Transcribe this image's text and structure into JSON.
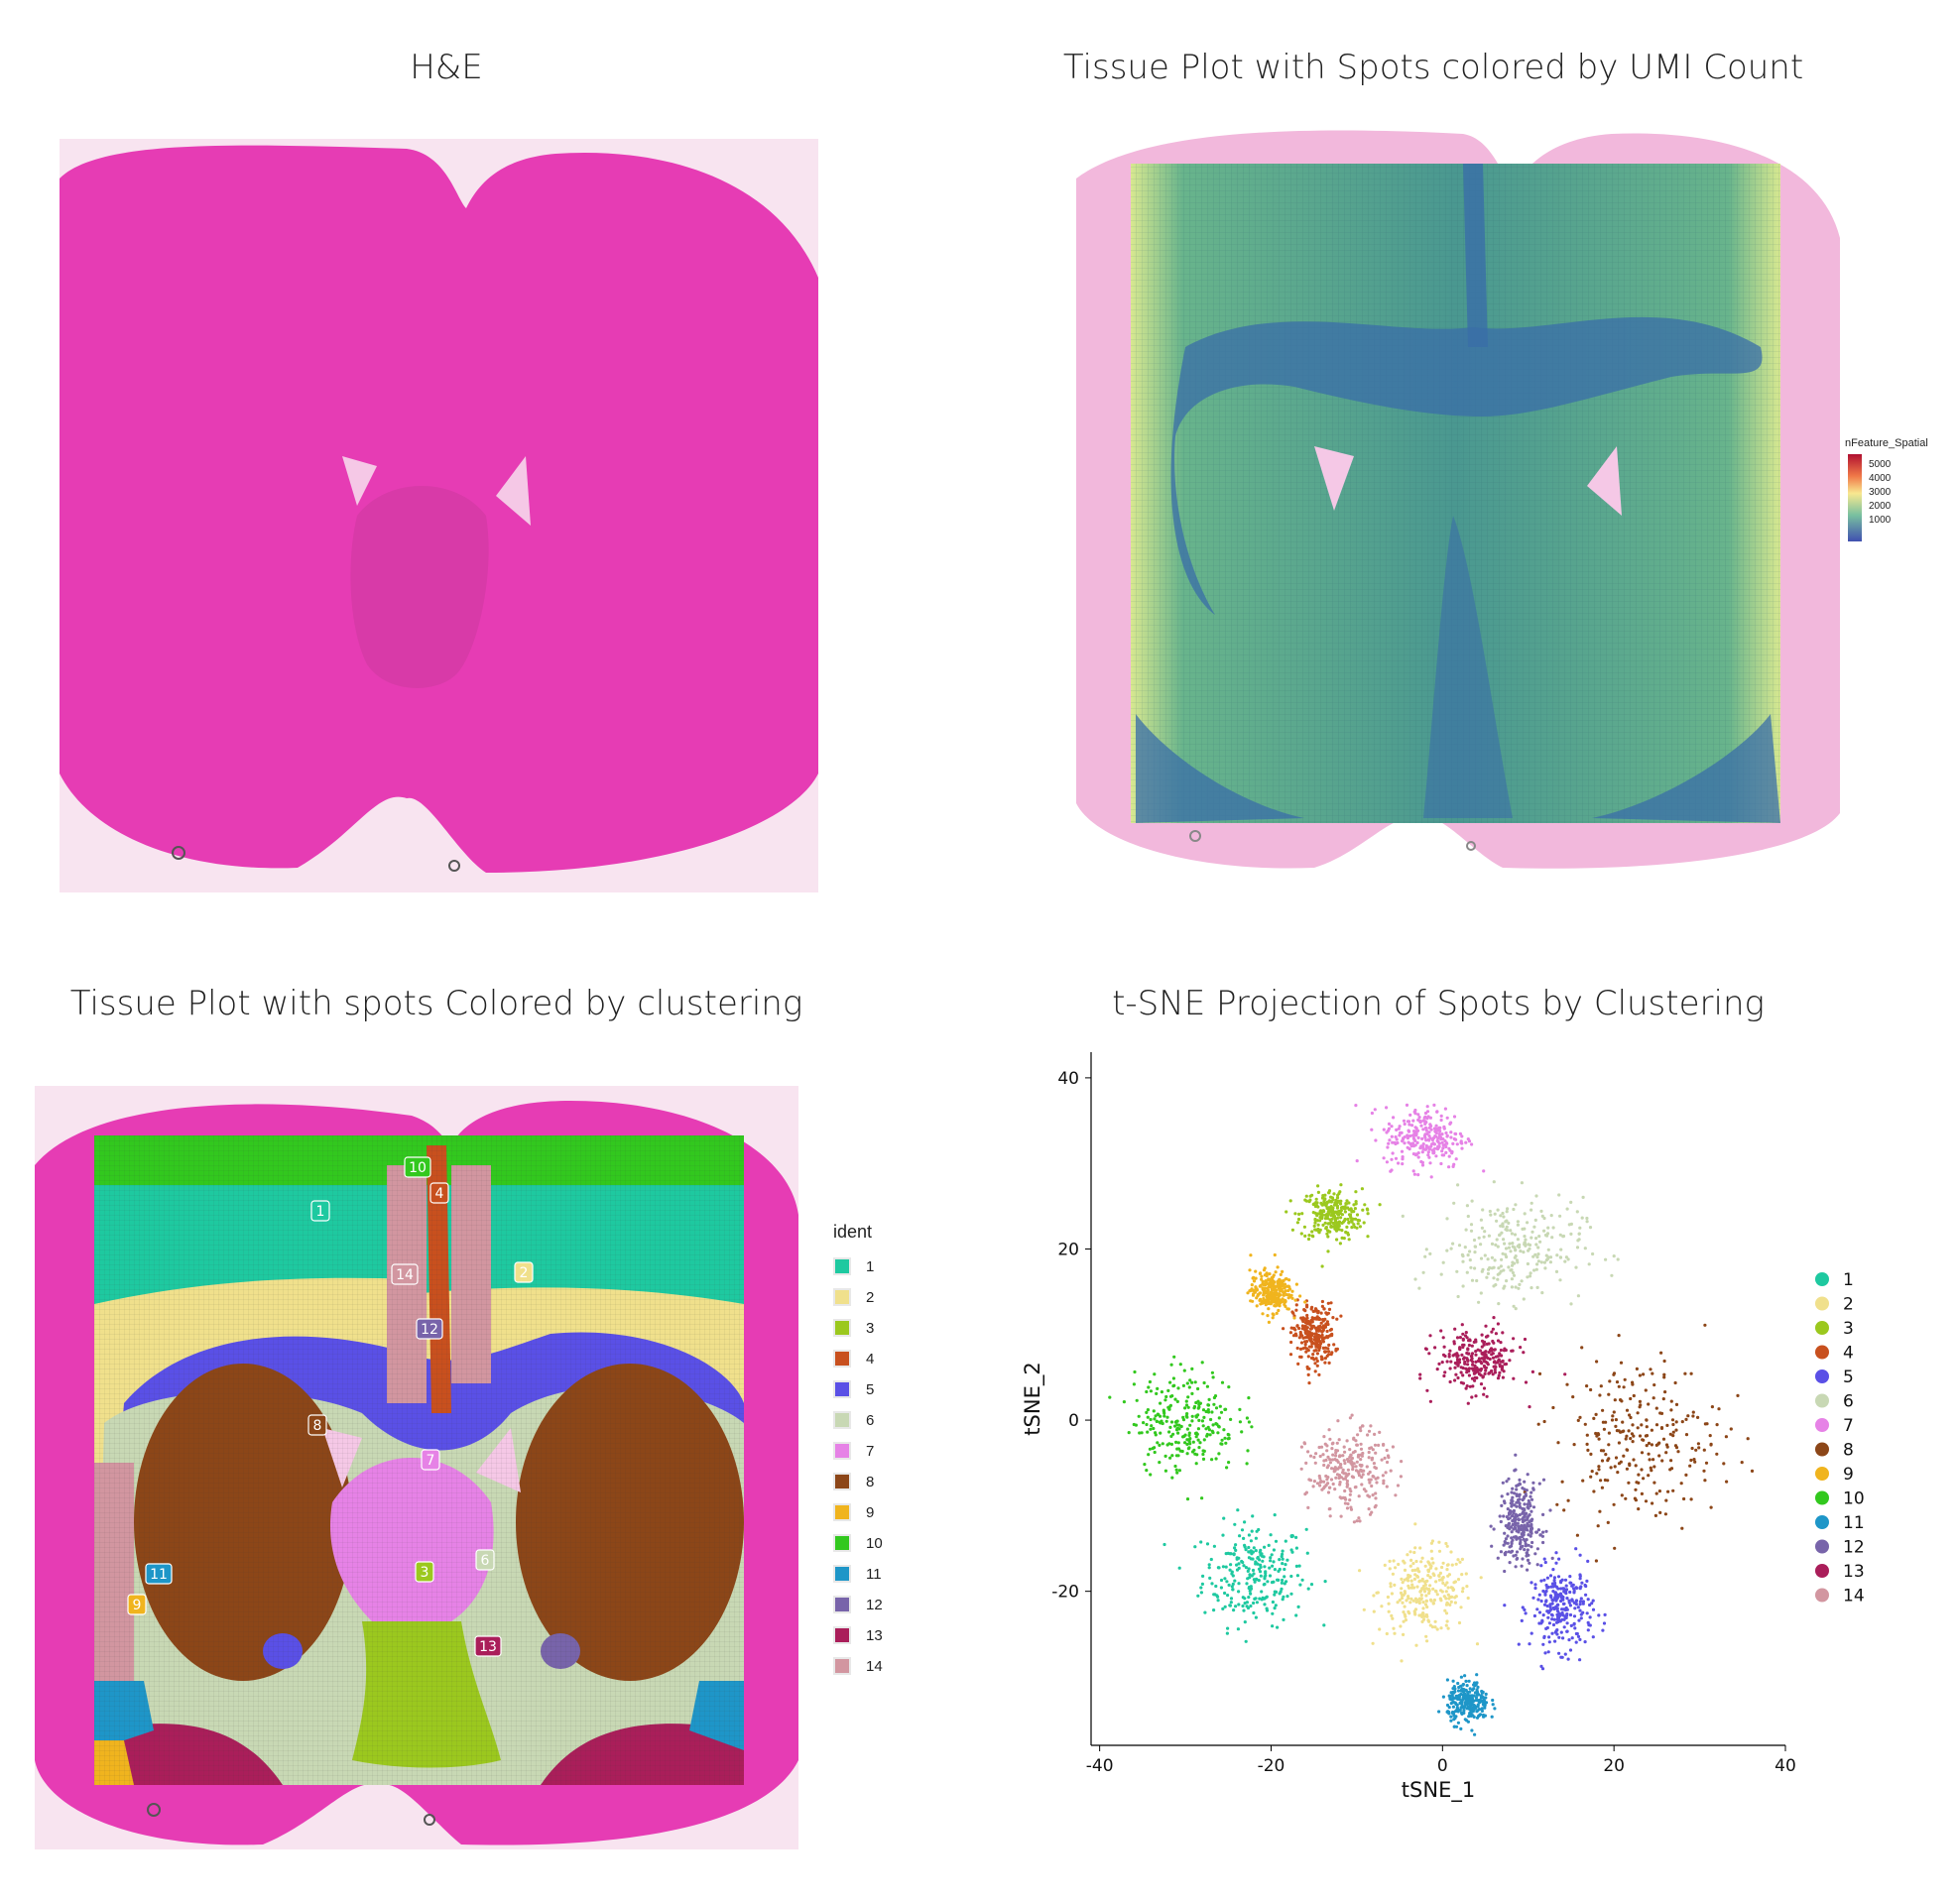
{
  "panels": {
    "he": {
      "title": "H&E"
    },
    "umi": {
      "title": "Tissue Plot with Spots colored by UMI Count",
      "legend_title": "nFeature_Spatial",
      "legend_ticks": [
        "5000",
        "4000",
        "3000",
        "2000",
        "1000"
      ]
    },
    "cluster_tissue": {
      "title": "Tissue Plot with spots Colored by clustering",
      "legend_title": "ident"
    },
    "tsne": {
      "title": "t-SNE Projection of Spots by Clustering"
    }
  },
  "clusters": [
    {
      "id": "1",
      "color": "#1ec9a0"
    },
    {
      "id": "2",
      "color": "#f0e08c"
    },
    {
      "id": "3",
      "color": "#9bc81e"
    },
    {
      "id": "4",
      "color": "#c8501e"
    },
    {
      "id": "5",
      "color": "#5a50e6"
    },
    {
      "id": "6",
      "color": "#c8d8b4"
    },
    {
      "id": "7",
      "color": "#e682e6"
    },
    {
      "id": "8",
      "color": "#8c4618"
    },
    {
      "id": "9",
      "color": "#f0b41e"
    },
    {
      "id": "10",
      "color": "#32c81e"
    },
    {
      "id": "11",
      "color": "#1e96c8"
    },
    {
      "id": "12",
      "color": "#7864aa"
    },
    {
      "id": "13",
      "color": "#aa1e5a"
    },
    {
      "id": "14",
      "color": "#d296a0"
    }
  ],
  "chart_data": {
    "type": "scatter",
    "title": "t-SNE Projection of Spots by Clustering",
    "xlabel": "tSNE_1",
    "ylabel": "tSNE_2",
    "xlim": [
      -41,
      40
    ],
    "ylim": [
      -38,
      43
    ],
    "xticks": [
      -40,
      -20,
      0,
      20,
      40
    ],
    "yticks": [
      -20,
      0,
      20,
      40
    ],
    "legend_position": "right",
    "series": [
      {
        "name": "1",
        "centroid": [
          -22,
          -18
        ],
        "spread": [
          5,
          5
        ]
      },
      {
        "name": "2",
        "centroid": [
          -2,
          -20
        ],
        "spread": [
          4.5,
          4
        ]
      },
      {
        "name": "3",
        "centroid": [
          -13,
          24
        ],
        "spread": [
          3,
          2.5
        ]
      },
      {
        "name": "4",
        "centroid": [
          -15,
          10
        ],
        "spread": [
          2,
          3
        ]
      },
      {
        "name": "5",
        "centroid": [
          14,
          -22
        ],
        "spread": [
          3,
          4
        ]
      },
      {
        "name": "6",
        "centroid": [
          8,
          20
        ],
        "spread": [
          7,
          5
        ]
      },
      {
        "name": "7",
        "centroid": [
          -2,
          33
        ],
        "spread": [
          4,
          3
        ]
      },
      {
        "name": "8",
        "centroid": [
          23,
          -2
        ],
        "spread": [
          8,
          8
        ]
      },
      {
        "name": "9",
        "centroid": [
          -20,
          15
        ],
        "spread": [
          2,
          2
        ]
      },
      {
        "name": "10",
        "centroid": [
          -30,
          0
        ],
        "spread": [
          5,
          5
        ]
      },
      {
        "name": "11",
        "centroid": [
          3,
          -33
        ],
        "spread": [
          2,
          2
        ]
      },
      {
        "name": "12",
        "centroid": [
          9,
          -12
        ],
        "spread": [
          2,
          4
        ]
      },
      {
        "name": "13",
        "centroid": [
          4,
          7
        ],
        "spread": [
          4,
          3
        ]
      },
      {
        "name": "14",
        "centroid": [
          -11,
          -6
        ],
        "spread": [
          4,
          4
        ]
      }
    ]
  }
}
